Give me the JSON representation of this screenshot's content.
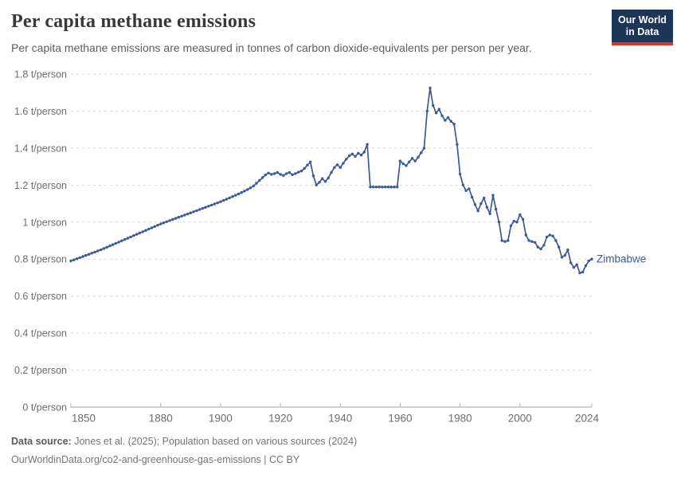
{
  "header": {
    "title": "Per capita methane emissions",
    "subtitle": "Per capita methane emissions are measured in tonnes of carbon dioxide-equivalents per person per year.",
    "logo": {
      "line1": "Our World",
      "line2": "in Data",
      "bg_color": "#1d3556",
      "accent_color": "#d8352a"
    }
  },
  "chart_data": {
    "type": "line",
    "title": "Per capita methane emissions",
    "xlabel": "",
    "ylabel": "t/person",
    "xlim": [
      1850,
      2024
    ],
    "ylim": [
      0,
      1.8
    ],
    "x_ticks": [
      1850,
      1880,
      1900,
      1920,
      1940,
      1960,
      1980,
      2000,
      2024
    ],
    "y_ticks": [
      0,
      0.2,
      0.4,
      0.6,
      0.8,
      1,
      1.2,
      1.4,
      1.6,
      1.8
    ],
    "y_tick_suffix": " t/person",
    "grid": "horizontal-dashed",
    "legend_position": "end-of-line",
    "line_color": "#3d5a96",
    "series": [
      {
        "name": "Zimbabwe",
        "start_year": 1850,
        "end_year": 2024,
        "values": [
          0.79,
          0.796,
          0.802,
          0.808,
          0.814,
          0.82,
          0.826,
          0.832,
          0.838,
          0.844,
          0.85,
          0.857,
          0.864,
          0.871,
          0.878,
          0.885,
          0.892,
          0.899,
          0.906,
          0.913,
          0.92,
          0.927,
          0.934,
          0.941,
          0.948,
          0.955,
          0.962,
          0.969,
          0.976,
          0.983,
          0.99,
          0.996,
          1.002,
          1.008,
          1.014,
          1.02,
          1.026,
          1.032,
          1.038,
          1.044,
          1.05,
          1.056,
          1.062,
          1.068,
          1.074,
          1.08,
          1.086,
          1.092,
          1.098,
          1.104,
          1.11,
          1.117,
          1.124,
          1.131,
          1.138,
          1.145,
          1.152,
          1.16,
          1.168,
          1.176,
          1.185,
          1.195,
          1.21,
          1.225,
          1.24,
          1.255,
          1.265,
          1.258,
          1.262,
          1.268,
          1.258,
          1.252,
          1.262,
          1.268,
          1.256,
          1.262,
          1.27,
          1.276,
          1.29,
          1.308,
          1.325,
          1.25,
          1.2,
          1.215,
          1.235,
          1.22,
          1.238,
          1.268,
          1.295,
          1.31,
          1.295,
          1.318,
          1.34,
          1.358,
          1.368,
          1.355,
          1.372,
          1.362,
          1.378,
          1.42,
          1.19,
          1.19,
          1.19,
          1.19,
          1.19,
          1.19,
          1.19,
          1.19,
          1.19,
          1.19,
          1.33,
          1.315,
          1.305,
          1.325,
          1.345,
          1.33,
          1.35,
          1.375,
          1.4,
          1.6,
          1.725,
          1.63,
          1.59,
          1.61,
          1.575,
          1.55,
          1.565,
          1.545,
          1.53,
          1.42,
          1.26,
          1.2,
          1.17,
          1.18,
          1.135,
          1.095,
          1.06,
          1.1,
          1.13,
          1.08,
          1.045,
          1.145,
          1.07,
          1.0,
          0.9,
          0.895,
          0.9,
          0.98,
          1.005,
          1.0,
          1.04,
          1.015,
          0.93,
          0.9,
          0.895,
          0.89,
          0.865,
          0.855,
          0.875,
          0.92,
          0.93,
          0.925,
          0.9,
          0.865,
          0.81,
          0.82,
          0.85,
          0.78,
          0.755,
          0.77,
          0.725,
          0.73,
          0.765,
          0.79,
          0.8
        ]
      }
    ]
  },
  "footer": {
    "datasource_label": "Data source:",
    "datasource_text": " Jones et al. (2025); Population based on various sources (2024)",
    "url_line": "OurWorldinData.org/co2-and-greenhouse-gas-emissions | CC BY"
  },
  "colors": {
    "line": "#3d5a96",
    "grid": "#d9d9d9",
    "axis": "#a1a1a1",
    "tick": "#b8b8b8",
    "tick_label": "#6d6d6d",
    "title": "#383838",
    "subtitle": "#5e5e5e",
    "footer": "#757575"
  }
}
